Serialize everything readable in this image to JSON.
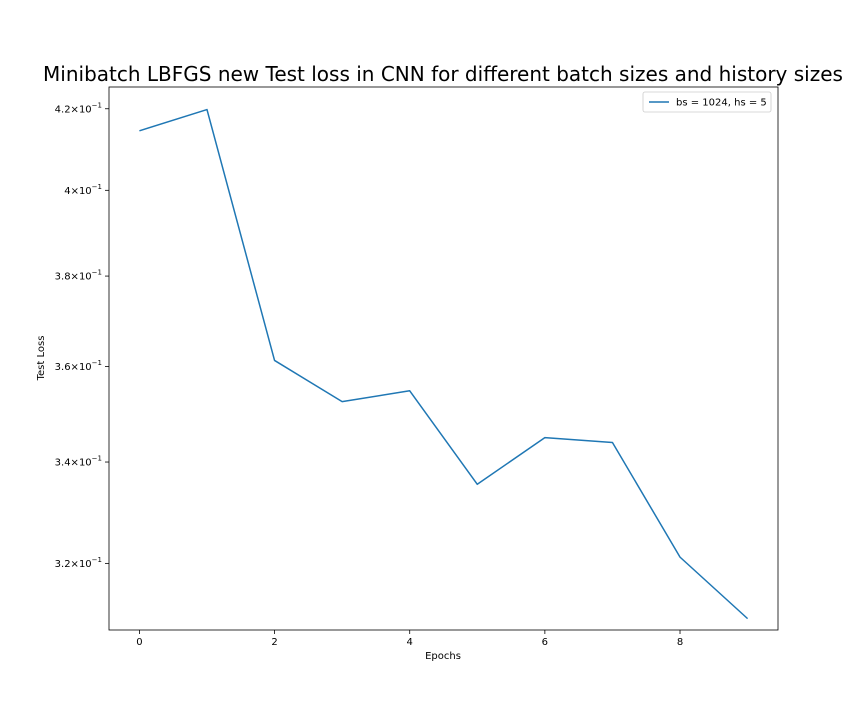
{
  "chart_data": {
    "type": "line",
    "title": "Minibatch LBFGS new Test loss in CNN for different batch sizes and history sizes",
    "xlabel": "Epochs",
    "ylabel": "Test Loss",
    "yscale": "log",
    "xlim": [
      -0.45,
      9.45
    ],
    "ylim": [
      0.3075,
      0.4255
    ],
    "x_ticks": [
      0,
      2,
      4,
      6,
      8
    ],
    "x_tick_labels": [
      "0",
      "2",
      "4",
      "6",
      "8"
    ],
    "y_ticks": [
      0.32,
      0.34,
      0.36,
      0.38,
      0.4,
      0.42
    ],
    "y_tick_labels": [
      {
        "mant": "3.2",
        "base": "10",
        "exp": "−1"
      },
      {
        "mant": "3.4",
        "base": "10",
        "exp": "−1"
      },
      {
        "mant": "3.6",
        "base": "10",
        "exp": "−1"
      },
      {
        "mant": "3.8",
        "base": "10",
        "exp": "−1"
      },
      {
        "mant": "4",
        "base": "10",
        "exp": "−1"
      },
      {
        "mant": "4.2",
        "base": "10",
        "exp": "−1"
      }
    ],
    "legend_position": "top-right",
    "grid": false,
    "series": [
      {
        "name": "bs = 1024, hs = 5",
        "color": "#1f77b4",
        "x": [
          0,
          1,
          2,
          3,
          4,
          5,
          6,
          7,
          8,
          9
        ],
        "y": [
          0.4145,
          0.4198,
          0.3613,
          0.3525,
          0.3548,
          0.3355,
          0.345,
          0.344,
          0.3212,
          0.3096
        ]
      }
    ]
  }
}
